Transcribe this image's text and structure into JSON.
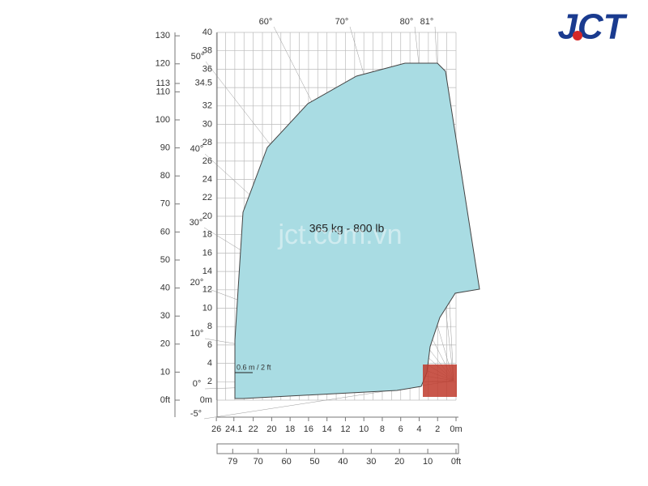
{
  "feet_scale": [
    "0ft",
    "10",
    "20",
    "30",
    "40",
    "50",
    "60",
    "70",
    "80",
    "90",
    "100",
    "110",
    "113",
    "120",
    "130"
  ],
  "meter_scale": [
    "0m",
    "2",
    "4",
    "6",
    "8",
    "10",
    "12",
    "14",
    "16",
    "18",
    "20",
    "22",
    "24",
    "26",
    "28",
    "30",
    "32",
    "34.5",
    "36",
    "38",
    "40"
  ],
  "angles": [
    "-5°",
    "0°",
    "10°",
    "20°",
    "30°",
    "40°",
    "50°",
    "60°",
    "70°",
    "80°",
    "81°"
  ],
  "bottom_meters": [
    "26",
    "24.1",
    "22",
    "20",
    "18",
    "16",
    "14",
    "12",
    "10",
    "8",
    "6",
    "4",
    "2",
    "0m"
  ],
  "bottom_feet": [
    "79",
    "70",
    "60",
    "50",
    "40",
    "30",
    "20",
    "10",
    "0ft"
  ],
  "load_label": "365 kg - 800 lb",
  "dimension_label": "0.6 m / 2 ft",
  "watermark": "jct.com.vn",
  "logo": "JCT"
}
